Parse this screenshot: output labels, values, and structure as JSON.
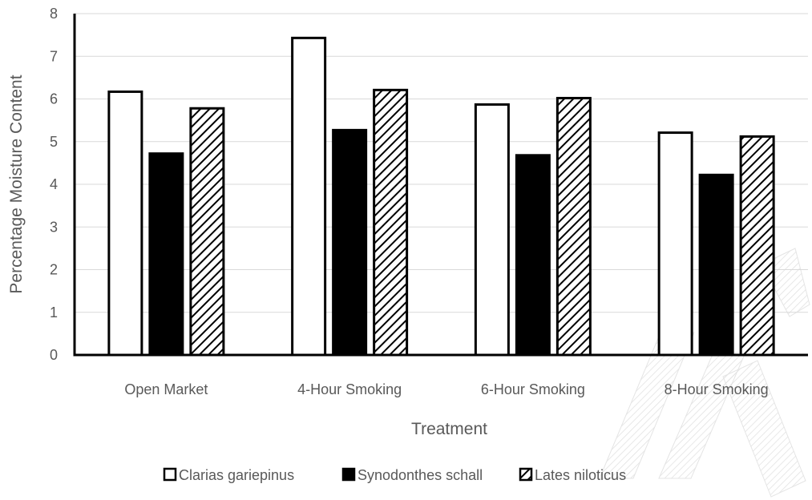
{
  "chart_data": {
    "type": "bar",
    "title": "",
    "xlabel": "Treatment",
    "ylabel": "Percentage Moisture Content",
    "categories": [
      "Open Market",
      "4-Hour Smoking",
      "6-Hour Smoking",
      "8-Hour Smoking"
    ],
    "series": [
      {
        "name": "Clarias gariepinus",
        "values": [
          6.17,
          7.43,
          5.87,
          5.21
        ],
        "style": "white"
      },
      {
        "name": "Synodonthes schall",
        "values": [
          4.72,
          5.27,
          4.68,
          4.22
        ],
        "style": "black"
      },
      {
        "name": "Lates niloticus",
        "values": [
          5.78,
          6.21,
          6.02,
          5.12
        ],
        "style": "hatched"
      }
    ],
    "ylim": [
      0,
      8
    ],
    "yticks": [
      0,
      1,
      2,
      3,
      4,
      5,
      6,
      7,
      8
    ],
    "grid": true,
    "legend_position": "bottom"
  },
  "colors": {
    "bar_outline": "#000000",
    "axis_text": "#595959",
    "gridline": "#d9d9d9",
    "watermark": "#bfbfbf"
  }
}
